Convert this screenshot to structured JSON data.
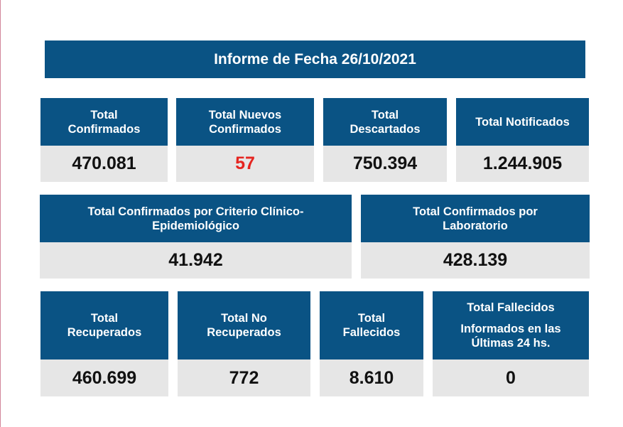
{
  "report": {
    "title": "Informe de Fecha 26/10/2021"
  },
  "stats": {
    "total_confirmados": {
      "label": [
        "Total",
        "Confirmados"
      ],
      "value": "470.081"
    },
    "total_nuevos_confirmados": {
      "label": [
        "Total Nuevos",
        "Confirmados"
      ],
      "value": "57",
      "value_color": "#e52520"
    },
    "total_descartados": {
      "label": [
        "Total",
        "Descartados"
      ],
      "value": "750.394"
    },
    "total_notificados": {
      "label": [
        "Total Notificados"
      ],
      "value": "1.244.905"
    },
    "total_criterio_clinico": {
      "label": [
        "Total Confirmados por Criterio Clínico-",
        "Epidemiológico"
      ],
      "value": "41.942"
    },
    "total_laboratorio": {
      "label": [
        "Total Confirmados por",
        "Laboratorio"
      ],
      "value": "428.139"
    },
    "total_recuperados": {
      "label": [
        "Total",
        "Recuperados"
      ],
      "value": "460.699"
    },
    "total_no_recuperados": {
      "label": [
        "Total No",
        "Recuperados"
      ],
      "value": "772"
    },
    "total_fallecidos": {
      "label": [
        "Total",
        "Fallecidos"
      ],
      "value": "8.610"
    },
    "total_fallecidos_24hs": {
      "label": [
        "Total Fallecidos",
        "Informados en las",
        "Últimas 24 hs."
      ],
      "value": "0"
    }
  },
  "colors": {
    "header_bg": "#0a5384",
    "value_bg": "#e6e6e6",
    "highlight_red": "#e52520"
  }
}
